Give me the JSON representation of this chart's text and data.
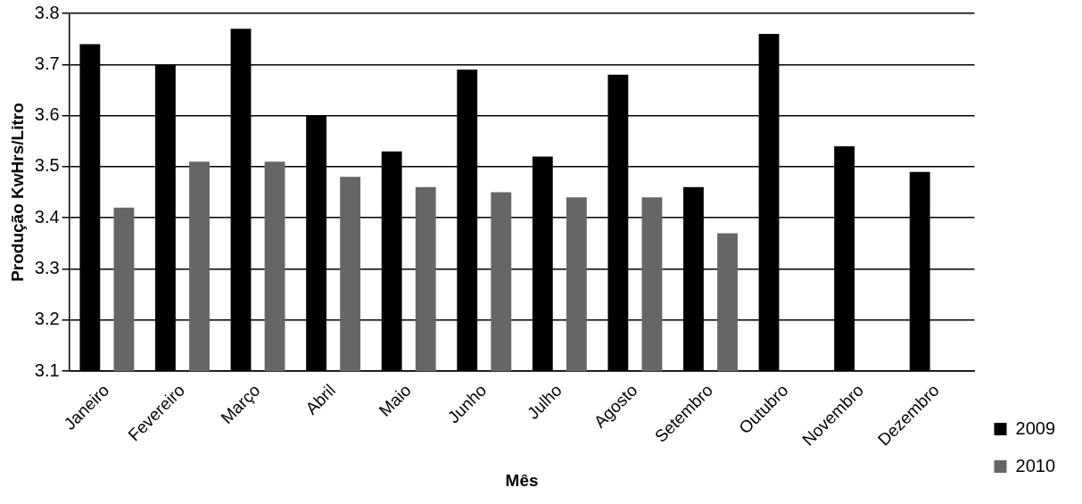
{
  "chart_data": {
    "type": "bar",
    "xlabel": "Mês",
    "ylabel": "Produção KwHrs/Litro",
    "categories": [
      "Janeiro",
      "Fevereiro",
      "Março",
      "Abril",
      "Maio",
      "Junho",
      "Julho",
      "Agosto",
      "Setembro",
      "Outubro",
      "Novembro",
      "Dezembro"
    ],
    "series": [
      {
        "name": "2009",
        "color": "#000000",
        "values": [
          3.74,
          3.7,
          3.77,
          3.6,
          3.53,
          3.69,
          3.52,
          3.68,
          3.46,
          3.76,
          3.54,
          3.49
        ]
      },
      {
        "name": "2010",
        "color": "#666666",
        "values": [
          3.42,
          3.51,
          3.51,
          3.48,
          3.46,
          3.45,
          3.44,
          3.44,
          3.37,
          null,
          null,
          null
        ]
      }
    ],
    "ylim": [
      3.1,
      3.8
    ],
    "yticks": [
      3.1,
      3.2,
      3.3,
      3.4,
      3.5,
      3.6,
      3.7,
      3.8
    ],
    "grid": "y",
    "legend": "right"
  }
}
